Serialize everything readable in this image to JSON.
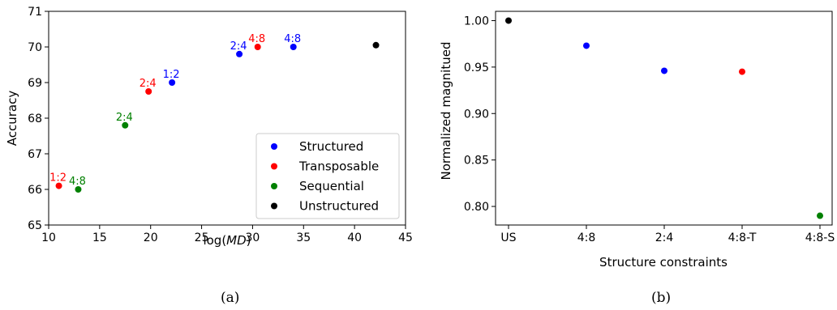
{
  "chart_data": [
    {
      "type": "scatter",
      "title": "",
      "xlabel_prefix": "log(",
      "xlabel_var": "MD",
      "xlabel_suffix": ")",
      "ylabel": "Accuracy",
      "xlim": [
        10,
        45
      ],
      "ylim": [
        65,
        71
      ],
      "xticks": [
        10,
        15,
        20,
        25,
        30,
        35,
        40,
        45
      ],
      "yticks": [
        65,
        66,
        67,
        68,
        69,
        70,
        71
      ],
      "grid": false,
      "legend_position": "bottom-right",
      "series": [
        {
          "name": "Structured",
          "color": "#0000ff",
          "points": [
            {
              "x": 22.1,
              "y": 69.0,
              "label": "1:2"
            },
            {
              "x": 28.7,
              "y": 69.8,
              "label": "2:4"
            },
            {
              "x": 34.0,
              "y": 70.0,
              "label": "4:8"
            }
          ]
        },
        {
          "name": "Transposable",
          "color": "#ff0000",
          "points": [
            {
              "x": 11.0,
              "y": 66.1,
              "label": "1:2"
            },
            {
              "x": 19.8,
              "y": 68.75,
              "label": "2:4"
            },
            {
              "x": 30.5,
              "y": 70.0,
              "label": "4:8"
            }
          ]
        },
        {
          "name": "Sequential",
          "color": "#008000",
          "points": [
            {
              "x": 12.9,
              "y": 66.0,
              "label": "4:8"
            },
            {
              "x": 17.5,
              "y": 67.8,
              "label": "2:4"
            }
          ]
        },
        {
          "name": "Unstructured",
          "color": "#000000",
          "points": [
            {
              "x": 42.1,
              "y": 70.05,
              "label": ""
            }
          ]
        }
      ],
      "caption": "(a)"
    },
    {
      "type": "scatter",
      "title": "",
      "xlabel": "Structure constraints",
      "ylabel": "Normalized magnitued",
      "categories": [
        "US",
        "4:8",
        "2:4",
        "4:8-T",
        "4:8-S"
      ],
      "ylim": [
        0.78,
        1.01
      ],
      "yticks": [
        "0.80",
        "0.85",
        "0.90",
        "0.95",
        "1.00"
      ],
      "grid": false,
      "points": [
        {
          "category": "US",
          "y": 1.0,
          "color": "#000000"
        },
        {
          "category": "4:8",
          "y": 0.973,
          "color": "#0000ff"
        },
        {
          "category": "2:4",
          "y": 0.946,
          "color": "#0000ff"
        },
        {
          "category": "4:8-T",
          "y": 0.945,
          "color": "#ff0000"
        },
        {
          "category": "4:8-S",
          "y": 0.79,
          "color": "#008000"
        }
      ],
      "caption": "(b)"
    }
  ]
}
